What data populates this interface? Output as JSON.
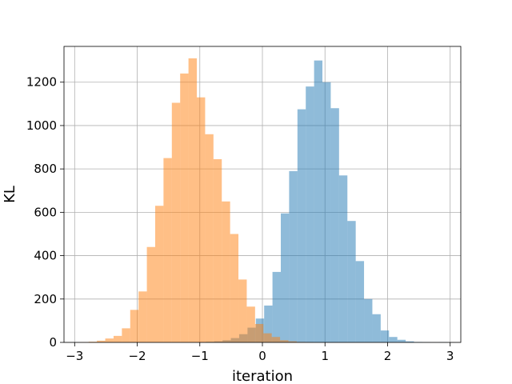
{
  "chart_data": {
    "type": "bar",
    "title": "",
    "xlabel": "iteration",
    "ylabel": "KL",
    "xlim": [
      -3.17,
      3.17
    ],
    "ylim": [
      0,
      1365
    ],
    "xticks": [
      -3,
      -2,
      -1,
      0,
      1,
      2,
      3
    ],
    "xtick_labels": [
      "−3",
      "−2",
      "−1",
      "0",
      "1",
      "2",
      "3"
    ],
    "yticks": [
      0,
      200,
      400,
      600,
      800,
      1000,
      1200
    ],
    "ytick_labels": [
      "0",
      "200",
      "400",
      "600",
      "800",
      "1000",
      "1200"
    ],
    "grid": true,
    "legend": "none",
    "series": [
      {
        "color": "#1f77b4",
        "opacity": 0.5,
        "bin_edges": [
          -1.036,
          -0.903,
          -0.77,
          -0.637,
          -0.504,
          -0.371,
          -0.238,
          -0.105,
          0.028,
          0.161,
          0.294,
          0.427,
          0.56,
          0.693,
          0.826,
          0.959,
          1.092,
          1.225,
          1.358,
          1.491,
          1.624,
          1.757,
          1.89,
          2.023,
          2.156,
          2.289,
          2.422,
          2.555,
          2.688,
          2.821,
          2.954
        ],
        "counts": [
          1,
          3,
          5,
          10,
          20,
          38,
          68,
          110,
          170,
          325,
          595,
          790,
          1075,
          1180,
          1300,
          1200,
          1080,
          770,
          560,
          375,
          200,
          130,
          55,
          25,
          12,
          5,
          2,
          1,
          0,
          1
        ]
      },
      {
        "color": "#ff7f0e",
        "opacity": 0.5,
        "bin_edges": [
          -2.91,
          -2.777,
          -2.644,
          -2.511,
          -2.378,
          -2.245,
          -2.112,
          -1.979,
          -1.846,
          -1.713,
          -1.58,
          -1.447,
          -1.314,
          -1.181,
          -1.048,
          -0.915,
          -0.782,
          -0.649,
          -0.516,
          -0.383,
          -0.25,
          -0.117,
          0.016,
          0.149,
          0.282,
          0.415,
          0.548,
          0.681,
          0.814,
          0.947,
          1.08
        ],
        "counts": [
          1,
          3,
          8,
          18,
          30,
          65,
          150,
          235,
          440,
          630,
          850,
          1105,
          1240,
          1310,
          1130,
          960,
          845,
          650,
          500,
          290,
          165,
          85,
          42,
          25,
          10,
          5,
          2,
          1,
          0,
          0
        ]
      }
    ]
  }
}
